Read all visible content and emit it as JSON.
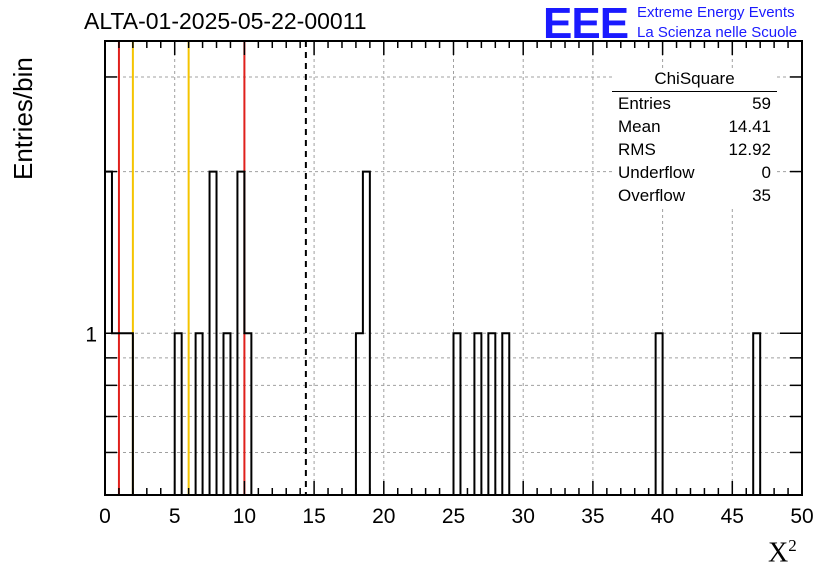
{
  "chart_data": {
    "type": "histogram",
    "title": "ALTA-01-2025-05-22-00011",
    "xlabel": "X",
    "xlabel_superscript": "2",
    "ylabel": "Entries/bin",
    "y_scale": "log",
    "xlim": [
      0,
      50
    ],
    "ylim": [
      0.5,
      3.5
    ],
    "x_ticks": [
      "0",
      "5",
      "10",
      "15",
      "20",
      "25",
      "30",
      "35",
      "40",
      "45",
      "50"
    ],
    "y_tick_labels": [
      "1"
    ],
    "grid": true,
    "bin_width": 0.5,
    "bins": [
      {
        "x0": 0.0,
        "count": 2
      },
      {
        "x0": 0.5,
        "count": 1
      },
      {
        "x0": 1.0,
        "count": 1
      },
      {
        "x0": 1.5,
        "count": 1
      },
      {
        "x0": 5.0,
        "count": 1
      },
      {
        "x0": 6.5,
        "count": 1
      },
      {
        "x0": 7.5,
        "count": 2
      },
      {
        "x0": 8.5,
        "count": 1
      },
      {
        "x0": 9.5,
        "count": 2
      },
      {
        "x0": 10.0,
        "count": 1
      },
      {
        "x0": 18.0,
        "count": 1
      },
      {
        "x0": 18.5,
        "count": 2
      },
      {
        "x0": 25.0,
        "count": 1
      },
      {
        "x0": 26.5,
        "count": 1
      },
      {
        "x0": 27.5,
        "count": 1
      },
      {
        "x0": 28.5,
        "count": 1
      },
      {
        "x0": 39.5,
        "count": 1
      },
      {
        "x0": 46.5,
        "count": 1
      }
    ],
    "vertical_lines": [
      {
        "x": 1.0,
        "color": "#e0201c",
        "style": "solid"
      },
      {
        "x": 2.0,
        "color": "#f5c400",
        "style": "solid"
      },
      {
        "x": 6.0,
        "color": "#f5c400",
        "style": "solid"
      },
      {
        "x": 10.0,
        "color": "#e0201c",
        "style": "solid"
      },
      {
        "x": 14.41,
        "color": "#000000",
        "style": "dashed"
      }
    ],
    "stats_box": {
      "name": "ChiSquare",
      "rows": [
        {
          "label": "Entries",
          "value": "59"
        },
        {
          "label": "Mean",
          "value": "14.41"
        },
        {
          "label": "RMS",
          "value": "12.92"
        },
        {
          "label": "Underflow",
          "value": "0"
        },
        {
          "label": "Overflow",
          "value": "35"
        }
      ]
    }
  },
  "logo": {
    "mark": "EEE",
    "line1": "Extreme Energy Events",
    "line2": "La Scienza nelle Scuole",
    "color": "#1a1aff"
  }
}
